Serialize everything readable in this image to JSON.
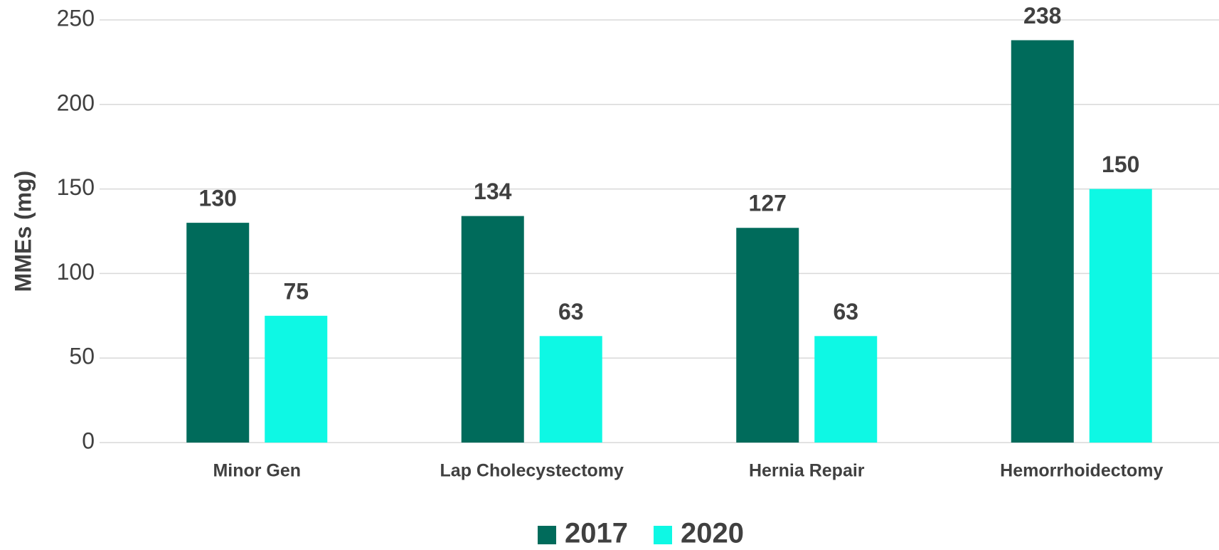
{
  "chart_data": {
    "type": "bar",
    "ylabel": "MMEs  (mg)",
    "categories": [
      "Minor Gen",
      "Lap Cholecystectomy",
      "Hernia Repair",
      "Hemorrhoidectomy"
    ],
    "series": [
      {
        "name": "2017",
        "color": "#006b5b",
        "values": [
          130,
          134,
          127,
          238
        ]
      },
      {
        "name": "2020",
        "color": "#0ef8e4",
        "values": [
          75,
          63,
          63,
          150
        ]
      }
    ],
    "ylim": [
      0,
      250
    ],
    "yticks": [
      0,
      50,
      100,
      150,
      200,
      250
    ],
    "grid": true,
    "legend": "bottom"
  }
}
